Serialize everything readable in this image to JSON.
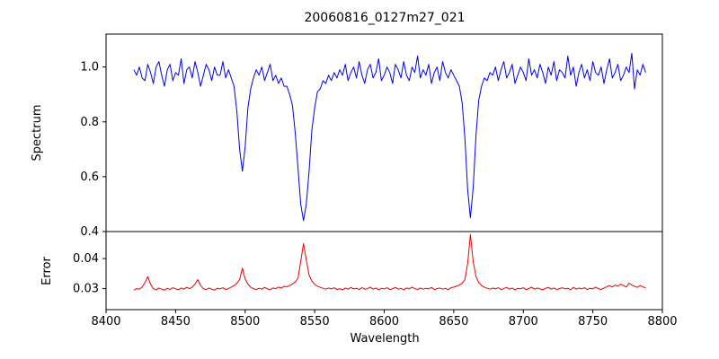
{
  "figure": {
    "title": "20060816_0127m27_021",
    "background": "#ffffff"
  },
  "chart_data": {
    "type": "line",
    "title": "20060816_0127m27_021",
    "xlabel": "Wavelength",
    "xlim": [
      8400,
      8800
    ],
    "xticks": [
      8400,
      8450,
      8500,
      8550,
      8600,
      8650,
      8700,
      8750,
      8800
    ],
    "xtick_labels": [
      "8400",
      "8450",
      "8500",
      "8550",
      "8600",
      "8650",
      "8700",
      "8750",
      "8800"
    ],
    "x_start": 8420,
    "x_step": 2,
    "grid": false,
    "legend": "none",
    "panels": [
      {
        "name": "spectrum",
        "ylabel": "Spectrum",
        "ylim": [
          0.4,
          1.12
        ],
        "yticks": [
          0.4,
          0.6,
          0.8,
          1.0
        ],
        "ytick_labels": [
          "0.4",
          "0.6",
          "0.8",
          "1.0"
        ],
        "line_color": "#0000ee",
        "values": [
          0.99,
          0.97,
          1.0,
          0.96,
          0.95,
          1.01,
          0.98,
          0.94,
          1.0,
          1.02,
          0.97,
          0.93,
          0.99,
          1.01,
          0.95,
          0.98,
          0.97,
          1.03,
          0.94,
          0.99,
          1.0,
          0.96,
          1.02,
          0.98,
          0.93,
          0.97,
          1.01,
          0.99,
          0.95,
          1.0,
          0.97,
          0.97,
          1.02,
          0.96,
          0.99,
          0.96,
          0.93,
          0.84,
          0.7,
          0.62,
          0.71,
          0.85,
          0.92,
          0.96,
          0.99,
          0.97,
          1.0,
          0.95,
          0.98,
          1.01,
          0.95,
          0.97,
          0.94,
          0.96,
          0.93,
          0.93,
          0.9,
          0.86,
          0.76,
          0.63,
          0.5,
          0.44,
          0.5,
          0.62,
          0.77,
          0.85,
          0.91,
          0.92,
          0.95,
          0.94,
          0.97,
          0.95,
          0.98,
          0.96,
          0.99,
          0.97,
          1.01,
          0.95,
          0.98,
          1.0,
          0.96,
          1.02,
          0.97,
          0.94,
          0.99,
          1.01,
          0.96,
          0.98,
          1.03,
          0.95,
          0.97,
          1.0,
          0.98,
          0.94,
          1.01,
          0.99,
          0.96,
          1.02,
          0.97,
          0.95,
          1.0,
          0.98,
          1.04,
          0.96,
          0.99,
          0.97,
          1.01,
          0.94,
          0.98,
          1.0,
          0.95,
          1.02,
          0.98,
          0.96,
          0.99,
          0.97,
          0.95,
          0.93,
          0.87,
          0.74,
          0.55,
          0.45,
          0.56,
          0.75,
          0.88,
          0.93,
          0.96,
          0.95,
          0.98,
          0.97,
          1.0,
          0.95,
          0.99,
          1.02,
          0.96,
          0.98,
          1.01,
          0.94,
          0.97,
          1.0,
          0.98,
          0.95,
          1.03,
          0.97,
          0.99,
          0.96,
          1.01,
          0.98,
          0.94,
          1.0,
          0.97,
          1.02,
          0.95,
          0.99,
          0.98,
          0.96,
          1.04,
          0.97,
          1.0,
          0.93,
          0.98,
          1.01,
          0.96,
          0.99,
          0.95,
          1.02,
          0.98,
          0.97,
          1.0,
          0.94,
          0.99,
          1.03,
          0.96,
          0.98,
          1.01,
          0.95,
          0.97,
          1.0,
          0.98,
          1.05,
          0.92,
          0.99,
          0.97,
          1.01,
          0.98
        ]
      },
      {
        "name": "error",
        "ylabel": "Error",
        "ylim": [
          0.023,
          0.049
        ],
        "yticks": [
          0.03,
          0.04
        ],
        "ytick_labels": [
          "0.03",
          "0.04"
        ],
        "line_color": "#ee0000",
        "values": [
          0.0295,
          0.03,
          0.0298,
          0.0305,
          0.032,
          0.034,
          0.0315,
          0.03,
          0.0296,
          0.0302,
          0.0298,
          0.0295,
          0.0301,
          0.0297,
          0.0303,
          0.0299,
          0.0296,
          0.0302,
          0.0298,
          0.0304,
          0.03,
          0.0305,
          0.0315,
          0.033,
          0.031,
          0.03,
          0.0297,
          0.0302,
          0.0298,
          0.0295,
          0.0301,
          0.0299,
          0.0303,
          0.0297,
          0.03,
          0.0305,
          0.031,
          0.0318,
          0.033,
          0.0368,
          0.0332,
          0.0315,
          0.0305,
          0.03,
          0.0297,
          0.0301,
          0.0298,
          0.0304,
          0.0299,
          0.0296,
          0.0302,
          0.03,
          0.0305,
          0.0302,
          0.0308,
          0.0306,
          0.031,
          0.0315,
          0.0322,
          0.0335,
          0.039,
          0.045,
          0.0395,
          0.0345,
          0.0325,
          0.0315,
          0.0308,
          0.0304,
          0.0301,
          0.0298,
          0.0302,
          0.0299,
          0.0303,
          0.0297,
          0.03,
          0.0296,
          0.0302,
          0.0298,
          0.0304,
          0.0299,
          0.0301,
          0.0297,
          0.0303,
          0.0298,
          0.03,
          0.0305,
          0.0298,
          0.0302,
          0.0296,
          0.0301,
          0.0299,
          0.0303,
          0.0297,
          0.03,
          0.0304,
          0.0298,
          0.0301,
          0.0296,
          0.0302,
          0.0299,
          0.0305,
          0.03,
          0.0297,
          0.0302,
          0.0298,
          0.0301,
          0.0299,
          0.0304,
          0.0297,
          0.03,
          0.0302,
          0.0298,
          0.0301,
          0.0296,
          0.0303,
          0.0305,
          0.0308,
          0.0312,
          0.0318,
          0.033,
          0.0385,
          0.048,
          0.039,
          0.034,
          0.032,
          0.031,
          0.0305,
          0.0301,
          0.0298,
          0.0302,
          0.0299,
          0.0303,
          0.0297,
          0.03,
          0.0304,
          0.0298,
          0.0302,
          0.0296,
          0.0301,
          0.0299,
          0.0303,
          0.0297,
          0.03,
          0.0305,
          0.0298,
          0.0302,
          0.0299,
          0.0296,
          0.0301,
          0.0304,
          0.0298,
          0.0302,
          0.0297,
          0.03,
          0.0303,
          0.0299,
          0.0301,
          0.0296,
          0.0304,
          0.0298,
          0.0302,
          0.0299,
          0.0303,
          0.0297,
          0.0301,
          0.0299,
          0.0305,
          0.03,
          0.0297,
          0.0302,
          0.0306,
          0.031,
          0.0305,
          0.0312,
          0.0308,
          0.0315,
          0.031,
          0.0305,
          0.0318,
          0.0312,
          0.0308,
          0.0304,
          0.031,
          0.0306,
          0.0302
        ]
      }
    ]
  }
}
